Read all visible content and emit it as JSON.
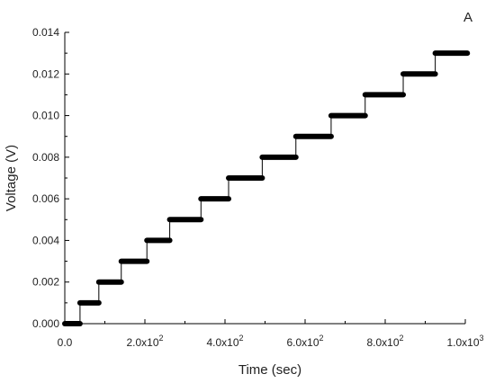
{
  "panel_letter": "A",
  "chart_data": {
    "type": "line",
    "title": "",
    "xlabel": "Time (sec)",
    "ylabel": "Voltage (V)",
    "xlim": [
      0,
      1000
    ],
    "ylim": [
      0,
      0.014
    ],
    "grid": false,
    "legend": "none",
    "x_ticks": [
      {
        "value": 0,
        "label": "0.0"
      },
      {
        "value": 200,
        "label": "2.0x10",
        "exp": "2"
      },
      {
        "value": 400,
        "label": "4.0x10",
        "exp": "2"
      },
      {
        "value": 600,
        "label": "6.0x10",
        "exp": "2"
      },
      {
        "value": 800,
        "label": "8.0x10",
        "exp": "2"
      },
      {
        "value": 1000,
        "label": "1.0x10",
        "exp": "3"
      }
    ],
    "y_ticks": [
      {
        "value": 0.0,
        "label": "0.000"
      },
      {
        "value": 0.002,
        "label": "0.002"
      },
      {
        "value": 0.004,
        "label": "0.004"
      },
      {
        "value": 0.006,
        "label": "0.006"
      },
      {
        "value": 0.008,
        "label": "0.008"
      },
      {
        "value": 0.01,
        "label": "0.010"
      },
      {
        "value": 0.012,
        "label": "0.012"
      },
      {
        "value": 0.014,
        "label": "0.014"
      }
    ],
    "series": [
      {
        "color": "#000000",
        "steps": [
          {
            "x_start": 0,
            "x_end": 38,
            "y": 0.0
          },
          {
            "x_start": 38,
            "x_end": 85,
            "y": 0.001
          },
          {
            "x_start": 85,
            "x_end": 141,
            "y": 0.002
          },
          {
            "x_start": 141,
            "x_end": 205,
            "y": 0.003
          },
          {
            "x_start": 205,
            "x_end": 262,
            "y": 0.004
          },
          {
            "x_start": 262,
            "x_end": 340,
            "y": 0.005
          },
          {
            "x_start": 340,
            "x_end": 409,
            "y": 0.006
          },
          {
            "x_start": 409,
            "x_end": 493,
            "y": 0.007
          },
          {
            "x_start": 493,
            "x_end": 577,
            "y": 0.008
          },
          {
            "x_start": 577,
            "x_end": 665,
            "y": 0.009
          },
          {
            "x_start": 665,
            "x_end": 750,
            "y": 0.01
          },
          {
            "x_start": 750,
            "x_end": 845,
            "y": 0.011
          },
          {
            "x_start": 845,
            "x_end": 925,
            "y": 0.012
          },
          {
            "x_start": 925,
            "x_end": 1005,
            "y": 0.013
          }
        ]
      }
    ]
  }
}
